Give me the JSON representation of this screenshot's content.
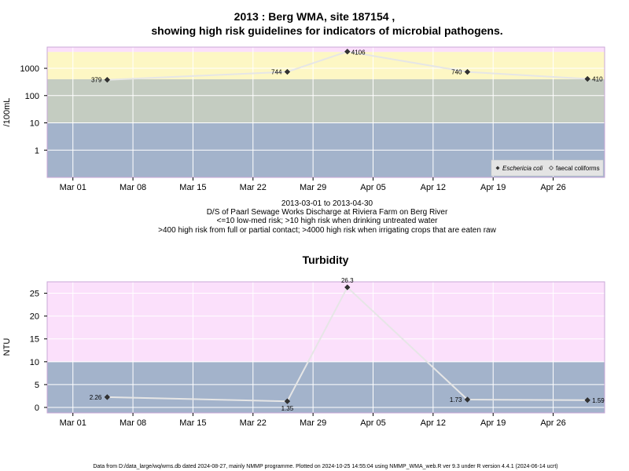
{
  "chart_data": [
    {
      "type": "line",
      "title": "2013 : Berg WMA, site 187154 ,",
      "subtitle": "showing high risk guidelines for indicators of microbial pathogens.",
      "ylabel": "/100mL",
      "y_scale": "log",
      "ylim": [
        0.1,
        6000
      ],
      "xlim": [
        "2013-02-26",
        "2013-05-02"
      ],
      "x_ticks": [
        {
          "date": "2013-03-01",
          "label": "Mar 01"
        },
        {
          "date": "2013-03-08",
          "label": "Mar 08"
        },
        {
          "date": "2013-03-15",
          "label": "Mar 15"
        },
        {
          "date": "2013-03-22",
          "label": "Mar 22"
        },
        {
          "date": "2013-03-29",
          "label": "Mar 29"
        },
        {
          "date": "2013-04-05",
          "label": "Apr 05"
        },
        {
          "date": "2013-04-12",
          "label": "Apr 12"
        },
        {
          "date": "2013-04-19",
          "label": "Apr 19"
        },
        {
          "date": "2013-04-26",
          "label": "Apr 26"
        }
      ],
      "y_ticks": [
        {
          "value": 1,
          "label": "1"
        },
        {
          "value": 10,
          "label": "10"
        },
        {
          "value": 100,
          "label": "100"
        },
        {
          "value": 1000,
          "label": "1000"
        }
      ],
      "bands": [
        {
          "from": 0.1,
          "to": 10,
          "color": "#a3b3cb"
        },
        {
          "from": 10,
          "to": 400,
          "color": "#c4ccc1"
        },
        {
          "from": 400,
          "to": 4000,
          "color": "#fdf7c4"
        },
        {
          "from": 4000,
          "to": 6000,
          "color": "#fbe0fb"
        }
      ],
      "series": [
        {
          "name": "Eschericia coli",
          "color": "#e6e6e6",
          "points": [
            {
              "x": "2013-03-05",
              "y": 379,
              "label": "379"
            },
            {
              "x": "2013-03-26",
              "y": 744,
              "label": "744"
            },
            {
              "x": "2013-04-02",
              "y": 4106,
              "label": "4106"
            },
            {
              "x": "2013-04-16",
              "y": 740,
              "label": "740"
            },
            {
              "x": "2013-04-30",
              "y": 410,
              "label": "410"
            }
          ]
        }
      ],
      "legend": {
        "placement": "bottom-right",
        "entries": [
          "Eschericia coli",
          "faecal coliforms"
        ]
      },
      "caption": [
        "2013-03-01 to 2013-04-30",
        "D/S of Paarl Sewage Works Discharge at Riviera Farm on Berg River",
        "<=10 low-med risk; >10 high risk when drinking untreated water",
        ">400 high risk from full or partial contact; >4000 high risk when irrigating crops that are eaten raw"
      ]
    },
    {
      "type": "line",
      "title": "Turbidity",
      "ylabel": "NTU",
      "y_scale": "linear",
      "ylim": [
        -1.2,
        27.5
      ],
      "xlim": [
        "2013-02-26",
        "2013-05-02"
      ],
      "x_ticks": [
        {
          "date": "2013-03-01",
          "label": "Mar 01"
        },
        {
          "date": "2013-03-08",
          "label": "Mar 08"
        },
        {
          "date": "2013-03-15",
          "label": "Mar 15"
        },
        {
          "date": "2013-03-22",
          "label": "Mar 22"
        },
        {
          "date": "2013-03-29",
          "label": "Mar 29"
        },
        {
          "date": "2013-04-05",
          "label": "Apr 05"
        },
        {
          "date": "2013-04-12",
          "label": "Apr 12"
        },
        {
          "date": "2013-04-19",
          "label": "Apr 19"
        },
        {
          "date": "2013-04-26",
          "label": "Apr 26"
        }
      ],
      "y_ticks": [
        {
          "value": 0,
          "label": "0"
        },
        {
          "value": 5,
          "label": "5"
        },
        {
          "value": 10,
          "label": "10"
        },
        {
          "value": 15,
          "label": "15"
        },
        {
          "value": 20,
          "label": "20"
        },
        {
          "value": 25,
          "label": "25"
        }
      ],
      "bands": [
        {
          "from": -1.2,
          "to": 10,
          "color": "#a3b3cb"
        },
        {
          "from": 10,
          "to": 27.5,
          "color": "#fbe0fb"
        }
      ],
      "series": [
        {
          "color": "#e6e6e6",
          "points": [
            {
              "x": "2013-03-05",
              "y": 2.26,
              "label": "2.26"
            },
            {
              "x": "2013-03-26",
              "y": 1.35,
              "label": "1.35"
            },
            {
              "x": "2013-04-02",
              "y": 26.3,
              "label": "26.3"
            },
            {
              "x": "2013-04-16",
              "y": 1.73,
              "label": "1.73"
            },
            {
              "x": "2013-04-30",
              "y": 1.59,
              "label": "1.59"
            }
          ]
        }
      ]
    }
  ],
  "footer": "Data from D:/data_large/wq/wms.db dated 2024-08-27, mainly NMMP programme. Plotted on 2024-10-25 14:55:04 using NMMP_WMA_web.R ver 9.3 under R version 4.4.1 (2024-06-14 ucrt)"
}
